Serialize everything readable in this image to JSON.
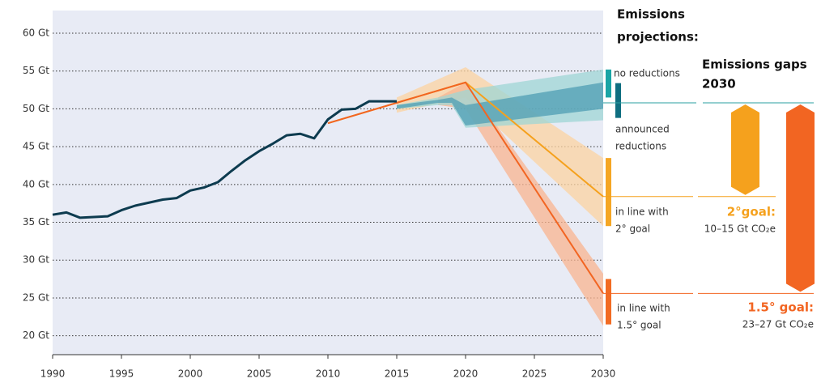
{
  "chart_data": {
    "type": "line",
    "xlim": [
      1990,
      2030
    ],
    "xticks": [
      1990,
      1995,
      2000,
      2005,
      2010,
      2015,
      2020,
      2025,
      2030
    ],
    "ylim": [
      17.5,
      63
    ],
    "yticks": [
      {
        "value": 20,
        "label": "20 Gt"
      },
      {
        "value": 25,
        "label": "25 Gt"
      },
      {
        "value": 30,
        "label": "30 Gt"
      },
      {
        "value": 35,
        "label": "35 Gt"
      },
      {
        "value": 40,
        "label": "40 Gt"
      },
      {
        "value": 45,
        "label": "45 Gt"
      },
      {
        "value": 50,
        "label": "50 Gt"
      },
      {
        "value": 55,
        "label": "55 Gt"
      },
      {
        "value": 60,
        "label": "60 Gt"
      }
    ],
    "grid": true,
    "history": {
      "color": "#0d3b4f",
      "x": [
        1990,
        1991,
        1992,
        1993,
        1994,
        1995,
        1996,
        1997,
        1998,
        1999,
        2000,
        2001,
        2002,
        2003,
        2004,
        2005,
        2006,
        2007,
        2008,
        2009,
        2010,
        2011,
        2012,
        2013,
        2014,
        2015
      ],
      "values": [
        36.0,
        36.3,
        35.6,
        35.7,
        35.8,
        36.6,
        37.2,
        37.6,
        38.0,
        38.2,
        39.2,
        39.6,
        40.3,
        41.8,
        43.2,
        44.4,
        45.4,
        46.5,
        46.7,
        46.1,
        48.6,
        49.9,
        50.0,
        51.0,
        51.0,
        51.0
      ]
    },
    "bands": [
      {
        "color": "#fcd3a0",
        "x": [
          2015,
          2020,
          2030
        ],
        "low": [
          49.5,
          51.5,
          34.5
        ],
        "high": [
          51.5,
          55.5,
          43.5
        ]
      },
      {
        "color": "#f9b48f",
        "x": [
          2018,
          2020,
          2030
        ],
        "low": [
          50.5,
          50,
          21.3
        ],
        "high": [
          51.5,
          53.5,
          28.2
        ]
      },
      {
        "color": "#9fd6d4",
        "x": [
          2015,
          2018,
          2019,
          2020,
          2030
        ],
        "low": [
          50,
          50.5,
          50.5,
          47.5,
          48.5
        ],
        "high": [
          50.5,
          51.5,
          52,
          52.5,
          55.2
        ]
      },
      {
        "color": "#4f9db3",
        "x": [
          2015,
          2018,
          2019,
          2020,
          2030
        ],
        "low": [
          50,
          50.8,
          50.8,
          47.8,
          50
        ],
        "high": [
          50.5,
          51.2,
          51.5,
          50.5,
          53.5
        ]
      }
    ],
    "projections": [
      {
        "color": "#f5a11d",
        "x": [
          2010,
          2020,
          2030
        ],
        "values": [
          48.1,
          53.5,
          38.4
        ]
      },
      {
        "color": "#f26522",
        "x": [
          2010,
          2020,
          2030
        ],
        "values": [
          48.1,
          53.5,
          25.6
        ]
      }
    ],
    "projections_title": [
      "Emissions",
      "projections:"
    ],
    "scenarios": [
      {
        "label": [
          "no reductions"
        ],
        "color": "#1aa5a5",
        "low": 51.5,
        "high": 55.2
      },
      {
        "label": [
          "announced",
          "reductions"
        ],
        "color": "#0f6e80",
        "low": 48.8,
        "high": 53.4
      },
      {
        "label": [
          "in line with",
          "2° goal"
        ],
        "color": "#f5a623",
        "low": 34.5,
        "high": 43.5
      },
      {
        "label": [
          "in line with",
          "1.5° goal"
        ],
        "color": "#f26b22",
        "low": 21.5,
        "high": 27.5
      }
    ],
    "gaps_title": [
      "Emissions gaps",
      "2030"
    ],
    "gap_baseline": 50.8,
    "baseline_color": "#2a9fa0",
    "gaps": [
      {
        "title": "2°goal:",
        "subtitle": "10–15 Gt CO₂e",
        "color": "#f5a11d"
      },
      {
        "title": "1.5° goal:",
        "subtitle": "23–27 Gt CO₂e",
        "color": "#f26522"
      }
    ]
  }
}
